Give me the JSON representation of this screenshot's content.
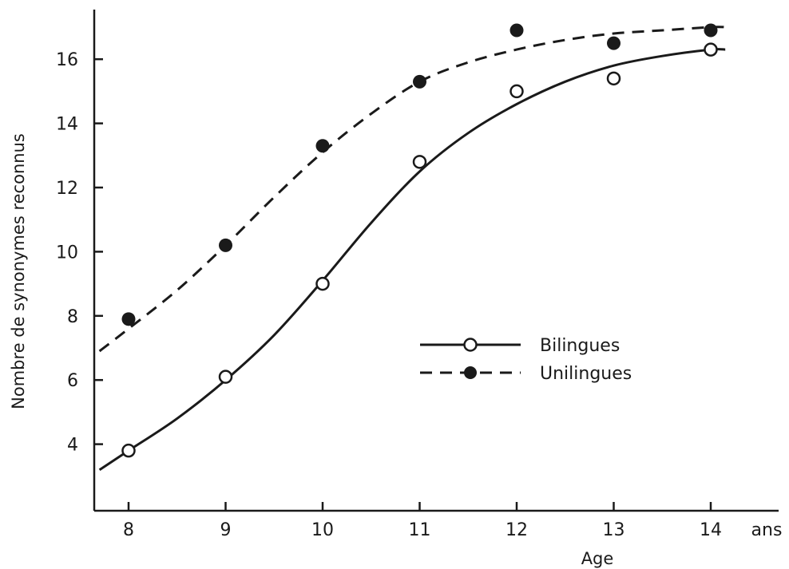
{
  "chart_data": {
    "type": "line",
    "title": "",
    "xlabel": "Age",
    "x_unit": "ans",
    "ylabel": "Nombre de synonymes reconnus",
    "xlim": [
      7.7,
      14.6
    ],
    "ylim": [
      2,
      17.6
    ],
    "x_ticks": [
      "8",
      "9",
      "10",
      "11",
      "12",
      "13",
      "14"
    ],
    "y_ticks": [
      "4",
      "6",
      "8",
      "10",
      "12",
      "14",
      "16"
    ],
    "x": [
      8,
      9,
      10,
      11,
      12,
      13,
      14
    ],
    "grid": false,
    "legend_position": "center-right",
    "series": [
      {
        "name": "Bilingues",
        "marker": "open-circle",
        "line_style": "solid",
        "values": [
          3.8,
          6.1,
          9.0,
          12.8,
          15.0,
          15.4,
          16.3
        ],
        "fit_curve": {
          "x": [
            7.7,
            8,
            8.5,
            9,
            9.5,
            10,
            10.5,
            11,
            11.5,
            12,
            12.5,
            13,
            13.5,
            14,
            14.15
          ],
          "y": [
            3.2,
            3.8,
            4.8,
            6.0,
            7.4,
            9.1,
            10.9,
            12.5,
            13.7,
            14.6,
            15.3,
            15.8,
            16.1,
            16.3,
            16.3
          ]
        }
      },
      {
        "name": "Unilingues",
        "marker": "filled-circle",
        "line_style": "dashed",
        "values": [
          7.9,
          10.2,
          13.3,
          15.3,
          16.9,
          16.5,
          16.9
        ],
        "fit_curve": {
          "x": [
            7.7,
            8,
            8.5,
            9,
            9.5,
            10,
            10.5,
            11,
            11.5,
            12,
            12.5,
            13,
            13.5,
            14,
            14.15
          ],
          "y": [
            6.9,
            7.6,
            8.8,
            10.2,
            11.7,
            13.1,
            14.3,
            15.3,
            15.9,
            16.3,
            16.6,
            16.8,
            16.9,
            17.0,
            17.0
          ]
        }
      }
    ]
  }
}
